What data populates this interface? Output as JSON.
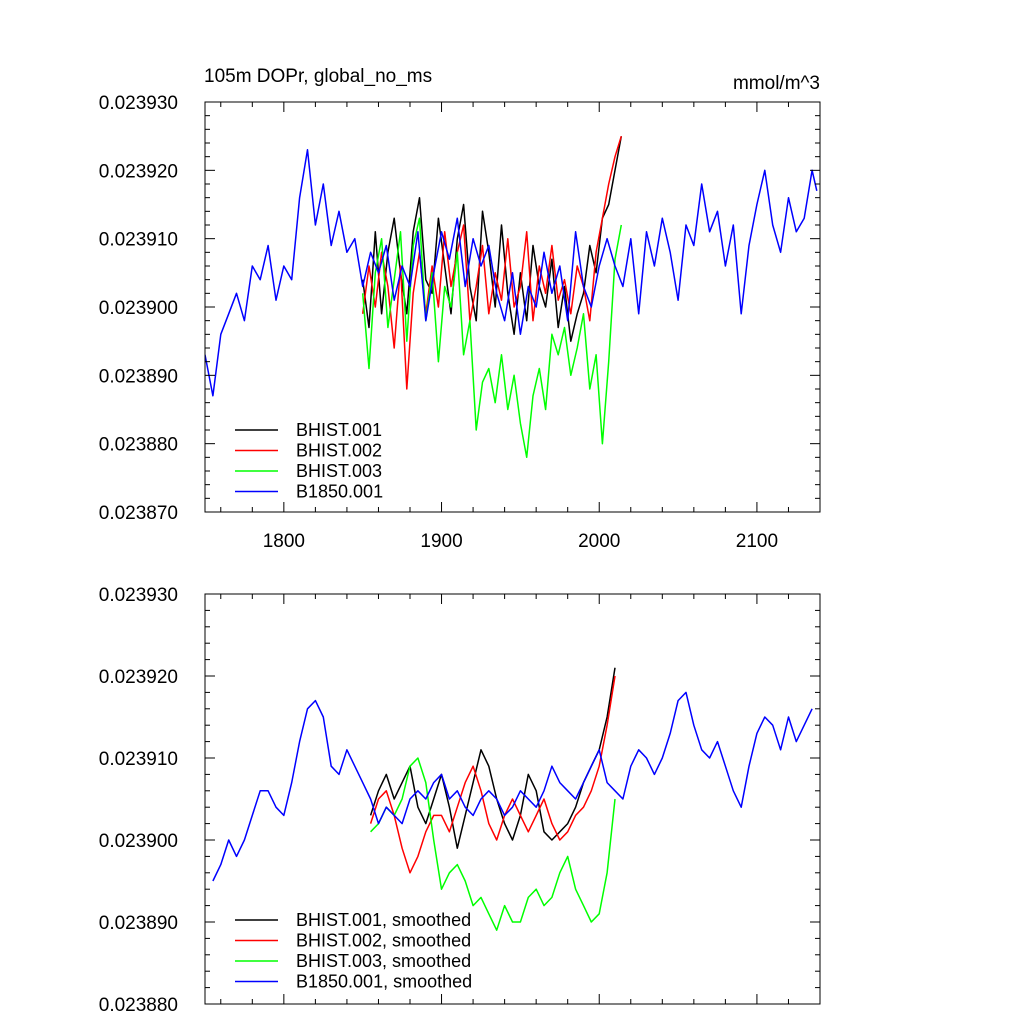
{
  "chart_data": [
    {
      "type": "line",
      "title": "105m DOPr, global_no_ms",
      "units_label": "mmol/m^3",
      "xlim": [
        1750,
        2140
      ],
      "ylim": [
        0.02387,
        0.02393
      ],
      "x_ticks": [
        1800,
        1900,
        2000,
        2100
      ],
      "x_tick_labels": [
        "1800",
        "1900",
        "2000",
        "2100"
      ],
      "y_ticks": [
        0.02387,
        0.02388,
        0.02389,
        0.0239,
        0.02391,
        0.02392,
        0.02393
      ],
      "y_tick_labels": [
        "0.023870",
        "0.023880",
        "0.023890",
        "0.023900",
        "0.023910",
        "0.023920",
        "0.023930"
      ],
      "legend_position": "bottom-left",
      "series": [
        {
          "name": "BHIST.001",
          "color": "#000000",
          "x": [
            1850,
            1854,
            1858,
            1862,
            1866,
            1870,
            1874,
            1878,
            1882,
            1886,
            1890,
            1894,
            1898,
            1902,
            1906,
            1910,
            1914,
            1918,
            1922,
            1926,
            1930,
            1934,
            1938,
            1942,
            1946,
            1950,
            1954,
            1958,
            1962,
            1966,
            1970,
            1974,
            1978,
            1982,
            1986,
            1990,
            1994,
            1998,
            2002,
            2006,
            2010,
            2014
          ],
          "y": [
            0.023904,
            0.023897,
            0.023911,
            0.023899,
            0.023908,
            0.023913,
            0.023905,
            0.023899,
            0.023911,
            0.023916,
            0.023904,
            0.023902,
            0.023913,
            0.023906,
            0.023899,
            0.02391,
            0.023915,
            0.023903,
            0.023898,
            0.023914,
            0.023908,
            0.0239,
            0.023912,
            0.023902,
            0.023896,
            0.023905,
            0.023898,
            0.023909,
            0.023903,
            0.0239,
            0.023907,
            0.023897,
            0.023903,
            0.023895,
            0.023899,
            0.023902,
            0.023909,
            0.023905,
            0.023913,
            0.023915,
            0.02392,
            0.023925
          ]
        },
        {
          "name": "BHIST.002",
          "color": "#ff0000",
          "x": [
            1850,
            1854,
            1858,
            1862,
            1866,
            1870,
            1874,
            1878,
            1882,
            1886,
            1890,
            1894,
            1898,
            1902,
            1906,
            1910,
            1914,
            1918,
            1922,
            1926,
            1930,
            1934,
            1938,
            1942,
            1946,
            1950,
            1954,
            1958,
            1962,
            1966,
            1970,
            1974,
            1978,
            1982,
            1986,
            1990,
            1994,
            1998,
            2002,
            2006,
            2010,
            2014
          ],
          "y": [
            0.023899,
            0.023906,
            0.0239,
            0.023908,
            0.023903,
            0.023894,
            0.023906,
            0.023888,
            0.023902,
            0.023908,
            0.023899,
            0.023906,
            0.0239,
            0.023911,
            0.023903,
            0.023908,
            0.023912,
            0.023898,
            0.023903,
            0.023909,
            0.023899,
            0.023905,
            0.023901,
            0.02391,
            0.0239,
            0.023903,
            0.023911,
            0.023898,
            0.023906,
            0.023902,
            0.023909,
            0.023901,
            0.023904,
            0.023899,
            0.023906,
            0.023903,
            0.023898,
            0.023908,
            0.023913,
            0.023918,
            0.023922,
            0.023925
          ]
        },
        {
          "name": "BHIST.003",
          "color": "#00ff00",
          "x": [
            1850,
            1854,
            1858,
            1862,
            1866,
            1870,
            1874,
            1878,
            1882,
            1886,
            1890,
            1894,
            1898,
            1902,
            1906,
            1910,
            1914,
            1918,
            1922,
            1926,
            1930,
            1934,
            1938,
            1942,
            1946,
            1950,
            1954,
            1958,
            1962,
            1966,
            1970,
            1974,
            1978,
            1982,
            1986,
            1990,
            1994,
            1998,
            2002,
            2006,
            2010,
            2014
          ],
          "y": [
            0.023902,
            0.023891,
            0.023905,
            0.02391,
            0.023897,
            0.023904,
            0.023911,
            0.023895,
            0.023909,
            0.023913,
            0.023898,
            0.023905,
            0.023892,
            0.023903,
            0.0239,
            0.023908,
            0.023893,
            0.023898,
            0.023882,
            0.023889,
            0.023891,
            0.023886,
            0.023893,
            0.023885,
            0.02389,
            0.023883,
            0.023878,
            0.023887,
            0.023891,
            0.023885,
            0.023896,
            0.023893,
            0.023897,
            0.02389,
            0.023894,
            0.023899,
            0.023888,
            0.023893,
            0.02388,
            0.023892,
            0.023907,
            0.023912
          ]
        },
        {
          "name": "B1850.001",
          "color": "#0000ff",
          "x": [
            1750,
            1755,
            1760,
            1765,
            1770,
            1775,
            1780,
            1785,
            1790,
            1795,
            1800,
            1805,
            1810,
            1815,
            1820,
            1825,
            1830,
            1835,
            1840,
            1845,
            1850,
            1855,
            1860,
            1865,
            1870,
            1875,
            1880,
            1885,
            1890,
            1895,
            1900,
            1905,
            1910,
            1915,
            1920,
            1925,
            1930,
            1935,
            1940,
            1945,
            1950,
            1955,
            1960,
            1965,
            1970,
            1975,
            1980,
            1985,
            1990,
            1995,
            2000,
            2005,
            2010,
            2015,
            2020,
            2025,
            2030,
            2035,
            2040,
            2045,
            2050,
            2055,
            2060,
            2065,
            2070,
            2075,
            2080,
            2085,
            2090,
            2095,
            2100,
            2105,
            2110,
            2115,
            2120,
            2125,
            2130,
            2135,
            2138
          ],
          "y": [
            0.023893,
            0.023887,
            0.023896,
            0.023899,
            0.023902,
            0.023898,
            0.023906,
            0.023904,
            0.023909,
            0.023901,
            0.023906,
            0.023904,
            0.023916,
            0.023923,
            0.023912,
            0.023918,
            0.023909,
            0.023914,
            0.023908,
            0.02391,
            0.023903,
            0.023908,
            0.023905,
            0.023909,
            0.023901,
            0.023906,
            0.023903,
            0.023911,
            0.023898,
            0.023905,
            0.023911,
            0.023907,
            0.023913,
            0.023903,
            0.02391,
            0.023906,
            0.023909,
            0.023902,
            0.023898,
            0.023905,
            0.023896,
            0.023903,
            0.0239,
            0.023908,
            0.023902,
            0.023906,
            0.023898,
            0.023911,
            0.023903,
            0.0239,
            0.023906,
            0.02391,
            0.023906,
            0.023903,
            0.02391,
            0.023899,
            0.023911,
            0.023906,
            0.023913,
            0.023908,
            0.023901,
            0.023912,
            0.023909,
            0.023918,
            0.023911,
            0.023914,
            0.023906,
            0.023912,
            0.023899,
            0.023909,
            0.023915,
            0.02392,
            0.023912,
            0.023908,
            0.023916,
            0.023911,
            0.023913,
            0.02392,
            0.023917
          ]
        }
      ]
    },
    {
      "type": "line",
      "title": "",
      "xlim": [
        1750,
        2140
      ],
      "ylim": [
        0.02388,
        0.02393
      ],
      "x_ticks": [
        1800,
        1900,
        2000,
        2100
      ],
      "y_ticks": [
        0.02388,
        0.02389,
        0.0239,
        0.02391,
        0.02392,
        0.02393
      ],
      "y_tick_labels": [
        "0.023880",
        "0.023890",
        "0.023900",
        "0.023910",
        "0.023920",
        "0.023930"
      ],
      "legend_position": "bottom-left",
      "series": [
        {
          "name": "BHIST.001, smoothed",
          "color": "#000000",
          "x": [
            1855,
            1860,
            1865,
            1870,
            1875,
            1880,
            1885,
            1890,
            1895,
            1900,
            1905,
            1910,
            1915,
            1920,
            1925,
            1930,
            1935,
            1940,
            1945,
            1950,
            1955,
            1960,
            1965,
            1970,
            1975,
            1980,
            1985,
            1990,
            1995,
            2000,
            2005,
            2010
          ],
          "y": [
            0.023903,
            0.023906,
            0.023908,
            0.023905,
            0.023907,
            0.023909,
            0.023904,
            0.023902,
            0.023905,
            0.023908,
            0.023904,
            0.023899,
            0.023903,
            0.023907,
            0.023911,
            0.023909,
            0.023905,
            0.023902,
            0.0239,
            0.023903,
            0.023908,
            0.023906,
            0.023901,
            0.0239,
            0.023901,
            0.023902,
            0.023904,
            0.023907,
            0.023909,
            0.023911,
            0.023915,
            0.023921
          ]
        },
        {
          "name": "BHIST.002, smoothed",
          "color": "#ff0000",
          "x": [
            1855,
            1860,
            1865,
            1870,
            1875,
            1880,
            1885,
            1890,
            1895,
            1900,
            1905,
            1910,
            1915,
            1920,
            1925,
            1930,
            1935,
            1940,
            1945,
            1950,
            1955,
            1960,
            1965,
            1970,
            1975,
            1980,
            1985,
            1990,
            1995,
            2000,
            2005,
            2010
          ],
          "y": [
            0.023902,
            0.023905,
            0.023906,
            0.023903,
            0.023899,
            0.023896,
            0.023898,
            0.023901,
            0.023903,
            0.023903,
            0.023901,
            0.023904,
            0.023907,
            0.023909,
            0.023906,
            0.023902,
            0.0239,
            0.023903,
            0.023905,
            0.023903,
            0.023901,
            0.023903,
            0.023905,
            0.023902,
            0.0239,
            0.023901,
            0.023903,
            0.023904,
            0.023906,
            0.023909,
            0.023914,
            0.02392
          ]
        },
        {
          "name": "BHIST.003, smoothed",
          "color": "#00ff00",
          "x": [
            1855,
            1860,
            1865,
            1870,
            1875,
            1880,
            1885,
            1890,
            1895,
            1900,
            1905,
            1910,
            1915,
            1920,
            1925,
            1930,
            1935,
            1940,
            1945,
            1950,
            1955,
            1960,
            1965,
            1970,
            1975,
            1980,
            1985,
            1990,
            1995,
            2000,
            2005,
            2010
          ],
          "y": [
            0.023901,
            0.023902,
            0.023904,
            0.023903,
            0.023905,
            0.023909,
            0.02391,
            0.023907,
            0.0239,
            0.023894,
            0.023896,
            0.023897,
            0.023895,
            0.023892,
            0.023893,
            0.023891,
            0.023889,
            0.023892,
            0.02389,
            0.02389,
            0.023893,
            0.023894,
            0.023892,
            0.023893,
            0.023896,
            0.023898,
            0.023894,
            0.023892,
            0.02389,
            0.023891,
            0.023896,
            0.023905
          ]
        },
        {
          "name": "B1850.001, smoothed",
          "color": "#0000ff",
          "x": [
            1755,
            1760,
            1765,
            1770,
            1775,
            1780,
            1785,
            1790,
            1795,
            1800,
            1805,
            1810,
            1815,
            1820,
            1825,
            1830,
            1835,
            1840,
            1845,
            1850,
            1855,
            1860,
            1865,
            1870,
            1875,
            1880,
            1885,
            1890,
            1895,
            1900,
            1905,
            1910,
            1915,
            1920,
            1925,
            1930,
            1935,
            1940,
            1945,
            1950,
            1955,
            1960,
            1965,
            1970,
            1975,
            1980,
            1985,
            1990,
            1995,
            2000,
            2005,
            2010,
            2015,
            2020,
            2025,
            2030,
            2035,
            2040,
            2045,
            2050,
            2055,
            2060,
            2065,
            2070,
            2075,
            2080,
            2085,
            2090,
            2095,
            2100,
            2105,
            2110,
            2115,
            2120,
            2125,
            2130,
            2135
          ],
          "y": [
            0.023895,
            0.023897,
            0.0239,
            0.023898,
            0.0239,
            0.023903,
            0.023906,
            0.023906,
            0.023904,
            0.023903,
            0.023907,
            0.023912,
            0.023916,
            0.023917,
            0.023915,
            0.023909,
            0.023908,
            0.023911,
            0.023909,
            0.023907,
            0.023905,
            0.023902,
            0.023904,
            0.023903,
            0.023902,
            0.023905,
            0.023906,
            0.023905,
            0.023907,
            0.023908,
            0.023905,
            0.023906,
            0.023904,
            0.023903,
            0.023905,
            0.023906,
            0.023905,
            0.023903,
            0.023904,
            0.023906,
            0.023905,
            0.023904,
            0.023906,
            0.023909,
            0.023907,
            0.023906,
            0.023905,
            0.023907,
            0.023909,
            0.023911,
            0.023907,
            0.023906,
            0.023905,
            0.023909,
            0.023911,
            0.02391,
            0.023908,
            0.02391,
            0.023913,
            0.023917,
            0.023918,
            0.023914,
            0.023911,
            0.02391,
            0.023912,
            0.023909,
            0.023906,
            0.023904,
            0.023909,
            0.023913,
            0.023915,
            0.023914,
            0.023911,
            0.023915,
            0.023912,
            0.023914,
            0.023916
          ]
        }
      ]
    }
  ]
}
